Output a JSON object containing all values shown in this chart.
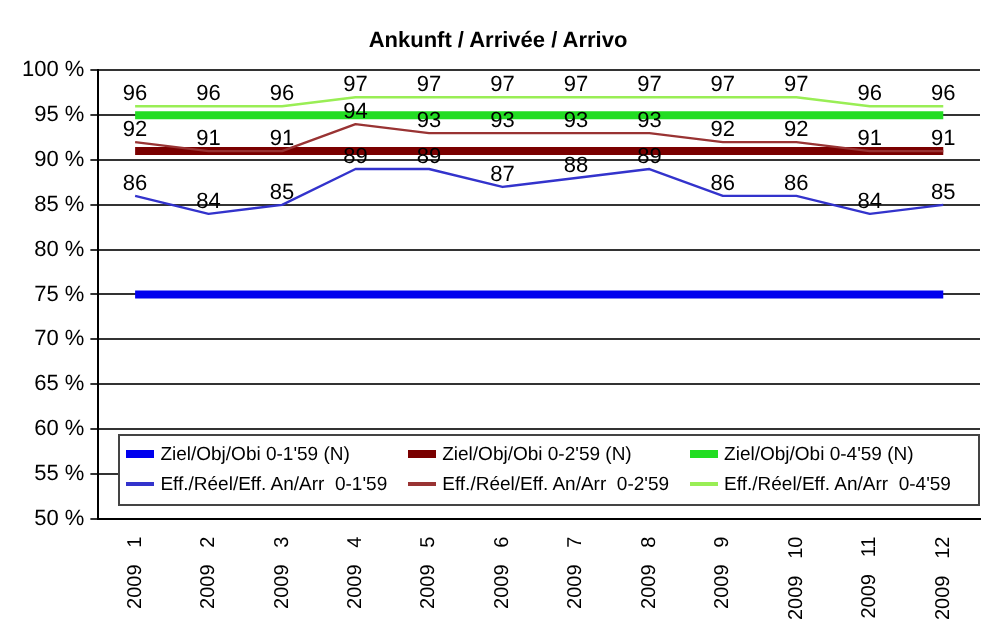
{
  "chart_data": {
    "type": "line",
    "title": "Ankunft / Arrivée / Arrivo",
    "categories": [
      "2009   1",
      "2009   2",
      "2009   3",
      "2009   4",
      "2009   5",
      "2009   6",
      "2009   7",
      "2009   8",
      "2009   9",
      "2009   10",
      "2009   11",
      "2009   12"
    ],
    "series": [
      {
        "name": "Eff./Réel/Eff. An/Arr  0-1'59",
        "color": "#3333cc",
        "values": [
          86,
          84,
          85,
          89,
          89,
          87,
          88,
          89,
          86,
          86,
          84,
          85
        ],
        "value_labels": [
          "86",
          "84",
          "85",
          "89",
          "89",
          "87",
          "88",
          "89",
          "86",
          "86",
          "84",
          "85"
        ]
      },
      {
        "name": "Eff./Réel/Eff. An/Arr  0-2'59",
        "color": "#993333",
        "values": [
          92,
          91,
          91,
          94,
          93,
          93,
          93,
          93,
          92,
          92,
          91,
          91
        ],
        "value_labels": [
          "92",
          "91",
          "91",
          "94",
          "93",
          "93",
          "93",
          "93",
          "92",
          "92",
          "91",
          "91"
        ]
      },
      {
        "name": "Eff./Réel/Eff. An/Arr  0-4'59",
        "color": "#99ee55",
        "values": [
          96,
          96,
          96,
          97,
          97,
          97,
          97,
          97,
          97,
          97,
          96,
          96
        ],
        "value_labels": [
          "96",
          "96",
          "96",
          "97",
          "97",
          "97",
          "97",
          "97",
          "97",
          "97",
          "96",
          "96"
        ]
      }
    ],
    "ref_lines": [
      {
        "axis": "y",
        "value": 75,
        "label": "Ziel/Obj/Obi 0-1'59 (N)",
        "color": "#0000ee"
      },
      {
        "axis": "y",
        "value": 91,
        "label": "Ziel/Obj/Obi 0-2'59 (N)",
        "color": "#7a0000"
      },
      {
        "axis": "y",
        "value": 95,
        "label": "Ziel/Obj/Obi 0-4'59 (N)",
        "color": "#22dd22"
      }
    ],
    "ylim": [
      50,
      100
    ],
    "yticks": [
      {
        "value": 50,
        "label": "50 %"
      },
      {
        "value": 55,
        "label": "55 %"
      },
      {
        "value": 60,
        "label": "60 %"
      },
      {
        "value": 65,
        "label": "65 %"
      },
      {
        "value": 70,
        "label": "70 %"
      },
      {
        "value": 75,
        "label": "75 %"
      },
      {
        "value": 80,
        "label": "80 %"
      },
      {
        "value": 85,
        "label": "85 %"
      },
      {
        "value": 90,
        "label": "90 %"
      },
      {
        "value": 95,
        "label": "95 %"
      },
      {
        "value": 100,
        "label": "100 %"
      }
    ],
    "grid": "y",
    "legend": "bottom",
    "marker": "none",
    "line_style": "solid"
  }
}
